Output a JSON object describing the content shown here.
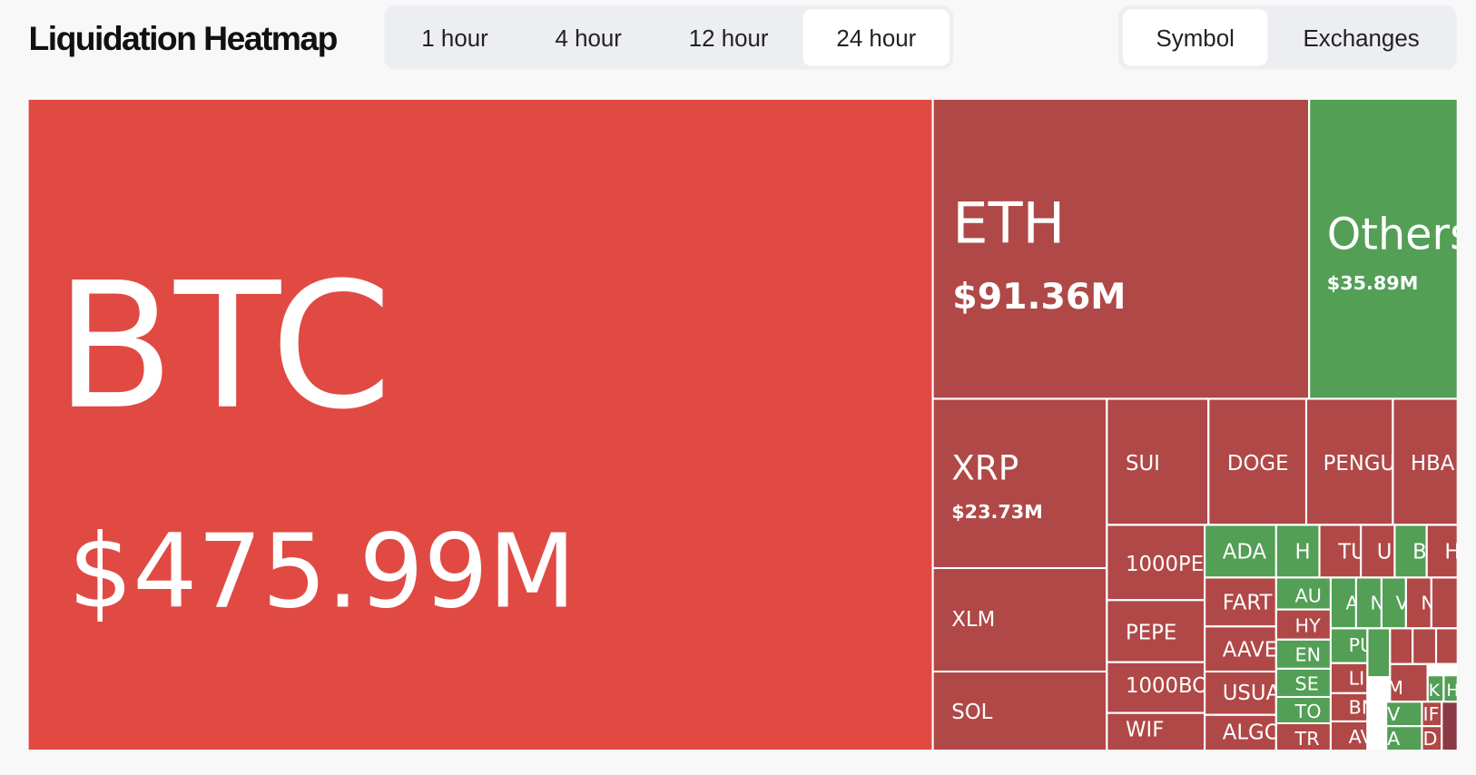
{
  "header": {
    "title": "Liquidation Heatmap",
    "time_tabs": [
      "1 hour",
      "4 hour",
      "12 hour",
      "24 hour"
    ],
    "active_time_tab": 3,
    "group_tabs": [
      "Symbol",
      "Exchanges"
    ],
    "active_group_tab": 0
  },
  "treemap": {
    "tiles": [
      {
        "label": "BTC",
        "value_label": "$475.99M",
        "color": "#e04a43"
      },
      {
        "label": "ETH",
        "value_label": "$91.36M",
        "color": "#b04848"
      },
      {
        "label": "Others",
        "value_label": "$35.89M",
        "color": "#529f55"
      },
      {
        "label": "XRP",
        "value_label": "$23.73M",
        "color": "#b04848"
      },
      {
        "label": "XLM",
        "color": "#b04848"
      },
      {
        "label": "SOL",
        "color": "#b04848"
      },
      {
        "label": "SUI",
        "color": "#b04848"
      },
      {
        "label": "DOGE",
        "color": "#b04848"
      },
      {
        "label": "PENGU",
        "color": "#b04848"
      },
      {
        "label": "HBA",
        "color": "#b04848"
      },
      {
        "label": "1000PE",
        "color": "#b04848"
      },
      {
        "label": "PEPE",
        "color": "#b04848"
      },
      {
        "label": "1000BO",
        "color": "#b04848"
      },
      {
        "label": "WIF",
        "color": "#b04848"
      },
      {
        "label": "ADA",
        "color": "#529f55"
      },
      {
        "label": "H",
        "color": "#529f55"
      },
      {
        "label": "TU",
        "color": "#b04848"
      },
      {
        "label": "U",
        "color": "#b04848"
      },
      {
        "label": "B",
        "color": "#529f55"
      },
      {
        "label": "H",
        "color": "#b04848"
      },
      {
        "label": "FART",
        "color": "#b04848"
      },
      {
        "label": "AAVE",
        "color": "#b04848"
      },
      {
        "label": "USUA",
        "color": "#b04848"
      },
      {
        "label": "ALGO",
        "color": "#b04848"
      },
      {
        "label": "AU",
        "color": "#529f55"
      },
      {
        "label": "HY",
        "color": "#b04848"
      },
      {
        "label": "EN",
        "color": "#529f55"
      },
      {
        "label": "SE",
        "color": "#529f55"
      },
      {
        "label": "TO",
        "color": "#529f55"
      },
      {
        "label": "TR",
        "color": "#b04848"
      },
      {
        "label": "A",
        "color": "#529f55"
      },
      {
        "label": "N",
        "color": "#529f55"
      },
      {
        "label": "V",
        "color": "#529f55"
      },
      {
        "label": "N",
        "color": "#b04848"
      },
      {
        "color": "#b04848"
      },
      {
        "label": "PU",
        "color": "#529f55"
      },
      {
        "label": "LI",
        "color": "#b04848"
      },
      {
        "label": "BN",
        "color": "#b04848"
      },
      {
        "label": "AV",
        "color": "#b04848"
      },
      {
        "color": "#529f55"
      },
      {
        "color": "#b04848"
      },
      {
        "color": "#b04848"
      },
      {
        "color": "#b04848"
      },
      {
        "label": "M",
        "color": "#b04848"
      },
      {
        "label": "K",
        "color": "#529f55"
      },
      {
        "label": "H",
        "color": "#529f55"
      },
      {
        "label": "V",
        "color": "#529f55"
      },
      {
        "label": "A",
        "color": "#529f55"
      },
      {
        "label": "IF",
        "color": "#b04848"
      },
      {
        "label": "D",
        "color": "#b04848"
      },
      {
        "color": "#8a3a44"
      }
    ]
  }
}
